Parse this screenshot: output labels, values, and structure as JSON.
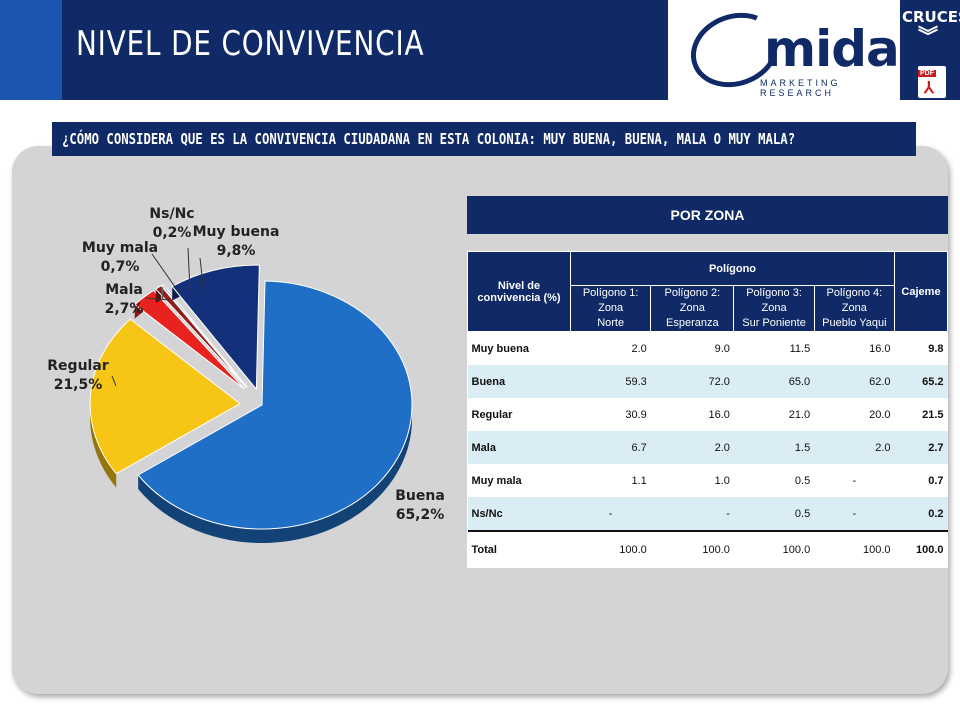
{
  "header": {
    "title": "NIVEL DE CONVIVENCIA",
    "logo_text": "mida",
    "logo_sub": "MARKETING RESEARCH",
    "corner_label": "CRUCES",
    "pdf_tag": "PDF"
  },
  "question": "¿CÓMO CONSIDERA QUE ES LA CONVIVENCIA CIUDADANA EN ESTA COLONIA: MUY BUENA, BUENA, MALA O MUY MALA?",
  "chart_data": [
    {
      "type": "pie",
      "title": "",
      "categories": [
        "Buena",
        "Regular",
        "Mala",
        "Muy mala",
        "Ns/Nc",
        "Muy buena"
      ],
      "values": [
        65.2,
        21.5,
        2.7,
        0.7,
        0.2,
        9.8
      ],
      "labels": [
        "65,2%",
        "21,5%",
        "2,7%",
        "0,7%",
        "0,2%",
        "9,8%"
      ],
      "colors": [
        "#1f6fc6",
        "#f6c515",
        "#e8221e",
        "#8f1f1b",
        "#9a9ab0",
        "#13307a"
      ]
    },
    {
      "type": "table",
      "title": "POR ZONA",
      "group_header": "Polígono",
      "row_header": "Nivel de convivencia (%)",
      "total_header": "Cajeme",
      "columns": [
        [
          "Polígono 1: Zona",
          "Norte"
        ],
        [
          "Polígono 2: Zona",
          "Esperanza"
        ],
        [
          "Polígono 3: Zona",
          "Sur Poniente"
        ],
        [
          "Polígono 4: Zona",
          "Pueblo Yaqui"
        ]
      ],
      "rows": [
        {
          "label": "Muy buena",
          "values": [
            "2.0",
            "9.0",
            "11.5",
            "16.0"
          ],
          "total": "9.8"
        },
        {
          "label": "Buena",
          "values": [
            "59.3",
            "72.0",
            "65.0",
            "62.0"
          ],
          "total": "65.2"
        },
        {
          "label": "Regular",
          "values": [
            "30.9",
            "16.0",
            "21.0",
            "20.0"
          ],
          "total": "21.5"
        },
        {
          "label": "Mala",
          "values": [
            "6.7",
            "2.0",
            "1.5",
            "2.0"
          ],
          "total": "2.7"
        },
        {
          "label": "Muy mala",
          "values": [
            "1.1",
            "1.0",
            "0.5",
            "-"
          ],
          "total": "0.7"
        },
        {
          "label": "Ns/Nc",
          "values": [
            "-",
            "-",
            "0.5",
            "-"
          ],
          "total": "0.2"
        },
        {
          "label": "Total",
          "values": [
            "100.0",
            "100.0",
            "100.0",
            "100.0"
          ],
          "total": "100.0"
        }
      ]
    }
  ]
}
